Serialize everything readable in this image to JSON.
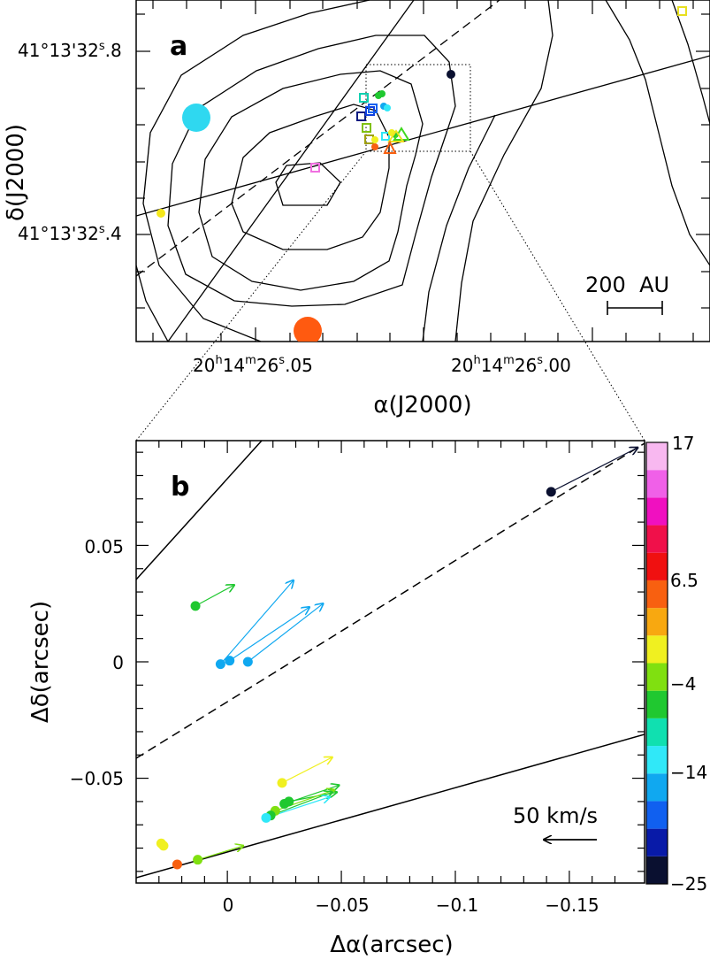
{
  "chart_data": [
    {
      "panel": "a",
      "type": "scatter",
      "panel_label": "a",
      "xlabel": "α(J2000)",
      "ylabel": "δ(J2000)",
      "x_ticks": [
        {
          "hours": "20",
          "minutes": "14",
          "seconds": "26",
          "frac": ".05"
        },
        {
          "hours": "20",
          "minutes": "14",
          "seconds": "26",
          "frac": ".00"
        }
      ],
      "y_ticks": [
        {
          "deg": "41°13'32",
          "frac": ".8"
        },
        {
          "deg": "41°13'32",
          "frac": ".4"
        }
      ],
      "scale_bar_label": "200  AU",
      "contours": "nested contours of continuum emission around the source",
      "masers": [
        {
          "marker": "circle",
          "color": "#2fd8f0",
          "size": "large"
        },
        {
          "marker": "circle",
          "color": "#ff5a10",
          "size": "large"
        },
        {
          "marker": "circle",
          "color": "#f5e81a",
          "size": "small"
        },
        {
          "marker": "circle",
          "color": "#0a1030",
          "size": "small"
        },
        {
          "marker": "square",
          "color": "#f070e0"
        },
        {
          "marker": "square",
          "color": "#e8e020"
        }
      ]
    },
    {
      "panel": "b",
      "type": "scatter",
      "panel_label": "b",
      "xlabel": "Δα(arcsec)",
      "ylabel": "Δδ(arcsec)",
      "x_ticks": [
        "0",
        "−0.05",
        "−0.1",
        "−0.15"
      ],
      "y_ticks": [
        "0.05",
        "0",
        "−0.05"
      ],
      "xlim": [
        0.04,
        -0.183
      ],
      "ylim": [
        -0.095,
        0.095
      ],
      "reference_arrow_label": "50 km/s",
      "reference_arrow_speed_kms": 50,
      "points": [
        {
          "x": -0.142,
          "y": 0.073,
          "vlsr": -24,
          "vx": -0.038,
          "vy": 0.019
        },
        {
          "x": 0.014,
          "y": 0.024,
          "vlsr": -7,
          "vx": -0.017,
          "vy": 0.009
        },
        {
          "x": 0.003,
          "y": -0.001,
          "vlsr": -15,
          "vx": -0.032,
          "vy": 0.036
        },
        {
          "x": -0.001,
          "y": 0.0005,
          "vlsr": -16,
          "vx": -0.035,
          "vy": 0.023
        },
        {
          "x": -0.009,
          "y": 0.0,
          "vlsr": -16,
          "vx": -0.033,
          "vy": 0.025
        },
        {
          "x": -0.024,
          "y": -0.052,
          "vlsr": -4,
          "vx": -0.022,
          "vy": 0.011
        },
        {
          "x": -0.025,
          "y": -0.061,
          "vlsr": -7,
          "vx": -0.024,
          "vy": 0.008
        },
        {
          "x": -0.027,
          "y": -0.06,
          "vlsr": -8,
          "vx": -0.021,
          "vy": 0.004
        },
        {
          "x": -0.021,
          "y": -0.064,
          "vlsr": -5,
          "vx": -0.026,
          "vy": 0.009
        },
        {
          "x": -0.019,
          "y": -0.066,
          "vlsr": -7,
          "vx": -0.027,
          "vy": 0.01
        },
        {
          "x": -0.017,
          "y": -0.067,
          "vlsr": -13,
          "vx": -0.028,
          "vy": 0.009
        },
        {
          "x": 0.029,
          "y": -0.078,
          "vlsr": -3,
          "vx": 0.0,
          "vy": 0.0
        },
        {
          "x": 0.028,
          "y": -0.079,
          "vlsr": -3,
          "vx": 0.0,
          "vy": 0.0
        },
        {
          "x": 0.013,
          "y": -0.085,
          "vlsr": -5,
          "vx": -0.02,
          "vy": 0.006
        },
        {
          "x": 0.022,
          "y": -0.087,
          "vlsr": 2,
          "vx": 0.0,
          "vy": 0.0
        }
      ],
      "colorbar": {
        "min": -25,
        "max": 17,
        "labels": [
          "17",
          "6.5",
          "−4",
          "−14",
          "−25"
        ],
        "colors": [
          "#0a1030",
          "#081aa8",
          "#1060f0",
          "#10a8f0",
          "#30e8f8",
          "#10e0b0",
          "#20c830",
          "#80e010",
          "#f0f020",
          "#f8a810",
          "#f86010",
          "#f01010",
          "#f0104a",
          "#f010c0",
          "#f060e8",
          "#f8b8f0"
        ]
      }
    }
  ]
}
